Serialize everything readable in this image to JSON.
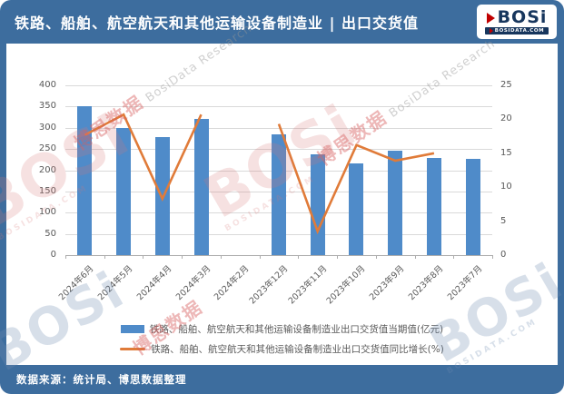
{
  "header": {
    "title": "铁路、船舶、航空航天和其他运输设备制造业 | 出口交货值",
    "logo": {
      "text": "BOSi",
      "domain": "BOSIDATA.COM"
    }
  },
  "footer": {
    "source": "数据来源：统计局、博思数据整理"
  },
  "legend": [
    {
      "label": "铁路、船舶、航空航天和其他运输设备制造业出口交货值当期值(亿元)",
      "marker": "bar"
    },
    {
      "label": "铁路、船舶、航空航天和其他运输设备制造业出口交货值同比增长(%)",
      "marker": "line"
    }
  ],
  "watermarks": {
    "cn": "博思数据",
    "en": "BosiData Research",
    "logo": "BOSi",
    "domain": "BOSIDATA.COM"
  },
  "colors": {
    "frame_blue": "#3D6D9E",
    "bar_blue": "#4F8BC9",
    "line_orange": "#E07B39",
    "axis_text": "#595959",
    "gridline": "#D9D9D9",
    "logo_navy": "#17365D",
    "logo_red": "#C00000"
  },
  "chart_data": {
    "type": "bar",
    "categories": [
      "2024年6月",
      "2024年5月",
      "2024年4月",
      "2024年3月",
      "2024年2月",
      "2023年12月",
      "2023年11月",
      "2023年10月",
      "2023年9月",
      "2023年8月",
      "2023年7月"
    ],
    "series": [
      {
        "name": "铁路、船舶、航空航天和其他运输设备制造业出口交货值当期值(亿元)",
        "type": "bar",
        "axis": "left",
        "values": [
          350,
          300,
          278,
          320,
          null,
          285,
          238,
          217,
          245,
          228,
          226
        ]
      },
      {
        "name": "铁路、船舶、航空航天和其他运输设备制造业出口交货值同比增长(%)",
        "type": "line",
        "axis": "right",
        "values": [
          17.7,
          20.7,
          8.3,
          20.7,
          null,
          19.3,
          3.5,
          16.2,
          13.9,
          15.0,
          null
        ]
      }
    ],
    "left_axis": {
      "min": 0,
      "max": 400,
      "step": 50,
      "ticks": [
        0,
        50,
        100,
        150,
        200,
        250,
        300,
        350,
        400
      ]
    },
    "right_axis": {
      "min": 0,
      "max": 25,
      "step": 5,
      "ticks": [
        0,
        5,
        10,
        15,
        20,
        25
      ]
    },
    "grid": true,
    "legend_position": "bottom"
  }
}
